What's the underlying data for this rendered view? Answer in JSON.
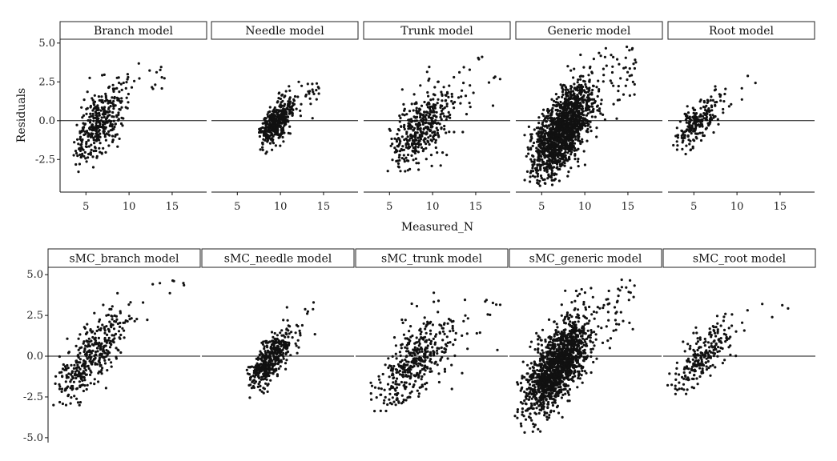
{
  "chart_data": [
    {
      "type": "scatter",
      "ylabel": "Residuals",
      "xlabel": "Measured_N",
      "ylim": [
        -4.6,
        5.3
      ],
      "yticks": [
        5.0,
        2.5,
        0.0,
        -2.5
      ],
      "ytick_labels": [
        "5.0",
        "2.5",
        "0.0",
        "-2.5"
      ],
      "xticks": [
        5,
        10,
        15
      ],
      "xtick_labels": [
        "5",
        "10",
        "15"
      ],
      "reference_line_y": 0,
      "grid": false,
      "panels": [
        {
          "title": "Branch model",
          "xlim": [
            2,
            19
          ],
          "x_range": [
            3.5,
            14.5
          ],
          "y_range": [
            -3.4,
            4.5
          ],
          "x_center": 7,
          "slope": 0.45,
          "noise": 1.0,
          "n": 380,
          "seed": 11
        },
        {
          "title": "Needle model",
          "xlim": [
            2,
            19
          ],
          "x_range": [
            7.5,
            14.5
          ],
          "y_range": [
            -2.8,
            3.6
          ],
          "x_center": 9.8,
          "slope": 0.5,
          "noise": 0.6,
          "n": 420,
          "seed": 23
        },
        {
          "title": "Trunk model",
          "xlim": [
            2,
            19
          ],
          "x_range": [
            4.5,
            18
          ],
          "y_range": [
            -3.4,
            4.2
          ],
          "x_center": 9.5,
          "slope": 0.45,
          "noise": 1.1,
          "n": 430,
          "seed": 37
        },
        {
          "title": "Generic model",
          "xlim": [
            2,
            19
          ],
          "x_range": [
            3,
            16
          ],
          "y_range": [
            -4.3,
            5.0
          ],
          "x_center": 8.5,
          "slope": 0.55,
          "noise": 1.15,
          "n": 1500,
          "seed": 41
        },
        {
          "title": "Root model",
          "xlim": [
            2,
            19
          ],
          "x_range": [
            2.5,
            12.5
          ],
          "y_range": [
            -2.2,
            3.1
          ],
          "x_center": 5.8,
          "slope": 0.42,
          "noise": 0.65,
          "n": 220,
          "seed": 53
        }
      ]
    },
    {
      "type": "scatter",
      "ylabel": "",
      "xlabel": "",
      "ylim": [
        -5.3,
        5.5
      ],
      "yticks": [
        5.0,
        2.5,
        0.0,
        -2.5,
        -5.0
      ],
      "ytick_labels": [
        "5.0",
        "2.5",
        "0.0",
        "-2.5",
        "-5.0"
      ],
      "reference_line_y": 0,
      "grid": false,
      "panels": [
        {
          "title": "sMC_branch model",
          "xlim": [
            2,
            19
          ],
          "x_range": [
            2.5,
            17.5
          ],
          "y_range": [
            -3.4,
            4.9
          ],
          "x_center": 7,
          "slope": 0.5,
          "noise": 1.0,
          "n": 380,
          "seed": 61
        },
        {
          "title": "sMC_needle model",
          "xlim": [
            2,
            19
          ],
          "x_range": [
            7,
            15
          ],
          "y_range": [
            -2.8,
            4.0
          ],
          "x_center": 10,
          "slope": 0.55,
          "noise": 0.65,
          "n": 420,
          "seed": 67
        },
        {
          "title": "sMC_trunk model",
          "xlim": [
            2,
            19
          ],
          "x_range": [
            3.5,
            18.5
          ],
          "y_range": [
            -3.4,
            5.0
          ],
          "x_center": 9.5,
          "slope": 0.45,
          "noise": 1.15,
          "n": 430,
          "seed": 71
        },
        {
          "title": "sMC_generic model",
          "xlim": [
            2,
            19
          ],
          "x_range": [
            2.5,
            16
          ],
          "y_range": [
            -4.7,
            4.8
          ],
          "x_center": 8.5,
          "slope": 0.55,
          "noise": 1.2,
          "n": 1500,
          "seed": 79
        },
        {
          "title": "sMC_root model",
          "xlim": [
            2,
            19
          ],
          "x_range": [
            2.5,
            16
          ],
          "y_range": [
            -2.4,
            3.3
          ],
          "x_center": 6.5,
          "slope": 0.42,
          "noise": 0.8,
          "n": 230,
          "seed": 83
        }
      ]
    }
  ]
}
